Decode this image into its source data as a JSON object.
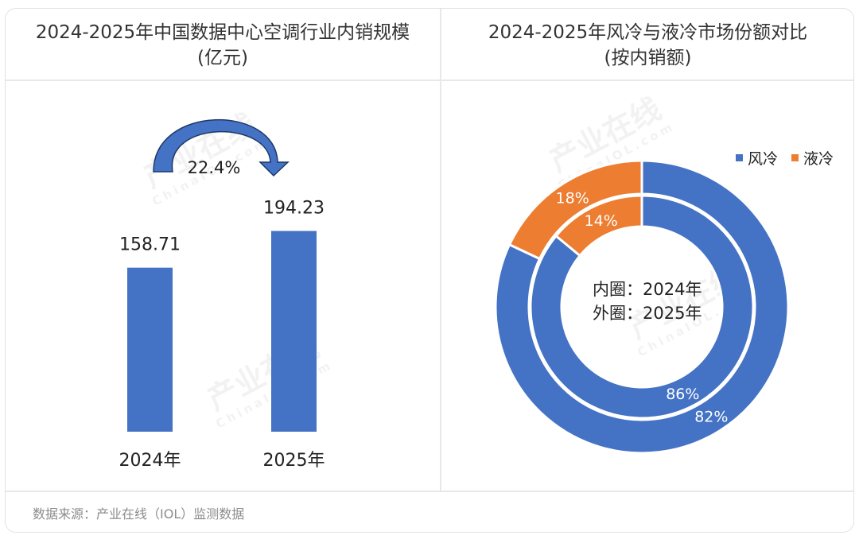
{
  "left_panel": {
    "title_line1": "2024-2025年中国数据中心空调行业内销规模",
    "title_line2": "(亿元)"
  },
  "right_panel": {
    "title_line1": "2024-2025年风冷与液冷市场份额对比",
    "title_line2": "(按内销额)"
  },
  "footer": {
    "source": "数据来源：产业在线（IOL）监测数据"
  },
  "watermark": {
    "text": "产业在线",
    "subtext": "ChinaIOL.com"
  },
  "colors": {
    "blue": "#4472C4",
    "orange": "#ED7D31",
    "arrow_fill": "#4472C4",
    "arrow_stroke": "#1f3864"
  },
  "chart_data": [
    {
      "type": "bar",
      "categories": [
        "2024年",
        "2025年"
      ],
      "values": [
        158.71,
        194.23
      ],
      "value_labels": [
        "158.71",
        "194.23"
      ],
      "growth_label": "22.4%",
      "title": "2024-2025年中国数据中心空调行业内销规模(亿元)"
    },
    {
      "type": "pie",
      "variant": "double-donut",
      "title": "2024-2025年风冷与液冷市场份额对比(按内销额)",
      "legend": [
        "风冷",
        "液冷"
      ],
      "legend_position": "top-right",
      "center_label_line1": "内圈：2024年",
      "center_label_line2": "外圈：2025年",
      "rings": [
        {
          "name": "2024年",
          "position": "inner",
          "values": [
            86,
            14
          ],
          "labels": [
            "86%",
            "14%"
          ]
        },
        {
          "name": "2025年",
          "position": "outer",
          "values": [
            82,
            18
          ],
          "labels": [
            "82%",
            "18%"
          ]
        }
      ]
    }
  ]
}
